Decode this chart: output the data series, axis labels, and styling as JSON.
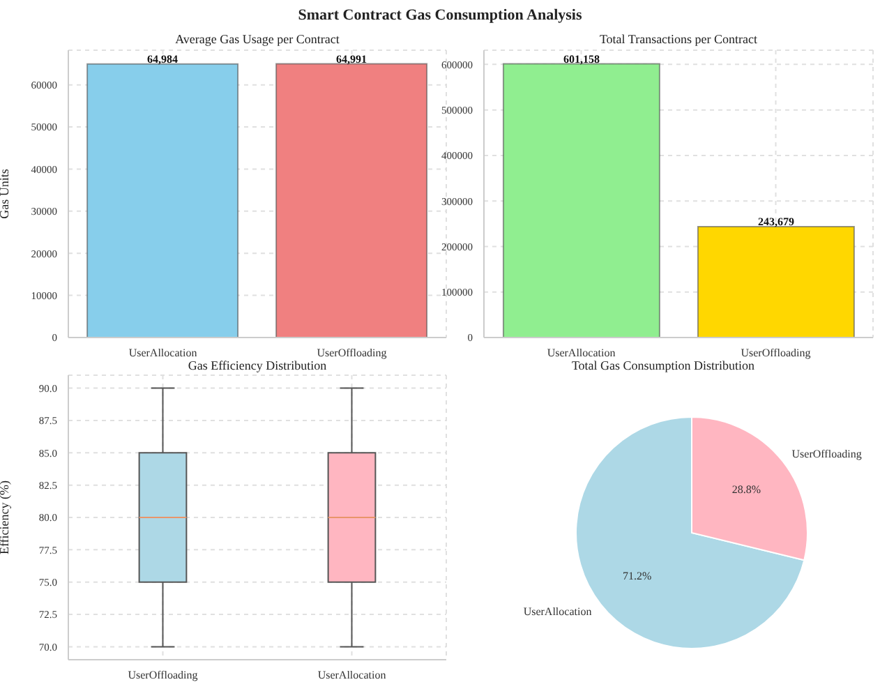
{
  "chart_data": [
    {
      "type": "other",
      "title": "Smart Contract Gas Consumption Analysis"
    },
    {
      "type": "bar",
      "title": "Average Gas Usage per Contract",
      "ylabel": "Gas Units",
      "categories": [
        "UserAllocation",
        "UserOffloading"
      ],
      "values": [
        64984,
        64991
      ],
      "colors": [
        "#87ceeb",
        "#f08080"
      ],
      "value_labels": [
        "64,984",
        "64,991"
      ],
      "ylim": [
        0,
        68240
      ],
      "yticks": [
        0,
        10000,
        20000,
        30000,
        40000,
        50000,
        60000
      ],
      "grid": true
    },
    {
      "type": "bar",
      "title": "Total Transactions per Contract",
      "categories": [
        "UserAllocation",
        "UserOffloading"
      ],
      "values": [
        601158,
        243679
      ],
      "colors": [
        "#90ee90",
        "#ffd700"
      ],
      "value_labels": [
        "601,158",
        "243,679"
      ],
      "ylim": [
        0,
        631216
      ],
      "yticks": [
        0,
        100000,
        200000,
        300000,
        400000,
        500000,
        600000
      ],
      "grid": true
    },
    {
      "type": "box",
      "title": "Gas Efficiency Distribution",
      "ylabel": "Efficiency (%)",
      "categories": [
        "UserOffloading",
        "UserAllocation"
      ],
      "colors": [
        "#add8e6",
        "#ffb6c1"
      ],
      "boxes": [
        {
          "low": 70,
          "q1": 75,
          "median": 80,
          "q3": 85,
          "high": 90
        },
        {
          "low": 70,
          "q1": 75,
          "median": 80,
          "q3": 85,
          "high": 90
        }
      ],
      "ylim": [
        69,
        91
      ],
      "yticks": [
        {
          "value": 70,
          "label": "70.0"
        },
        {
          "value": 72.5,
          "label": "72.5"
        },
        {
          "value": 75,
          "label": "75.0"
        },
        {
          "value": 77.5,
          "label": "77.5"
        },
        {
          "value": 80,
          "label": "80.0"
        },
        {
          "value": 82.5,
          "label": "82.5"
        },
        {
          "value": 85,
          "label": "85.0"
        },
        {
          "value": 87.5,
          "label": "87.5"
        },
        {
          "value": 90,
          "label": "90.0"
        }
      ],
      "grid": true
    },
    {
      "type": "pie",
      "title": "Total Gas Consumption Distribution",
      "categories": [
        "UserAllocation",
        "UserOffloading"
      ],
      "values": [
        71.2,
        28.8
      ],
      "colors": [
        "#add8e6",
        "#ffb6c1"
      ],
      "value_labels": [
        "71.2%",
        "28.8%"
      ]
    }
  ]
}
